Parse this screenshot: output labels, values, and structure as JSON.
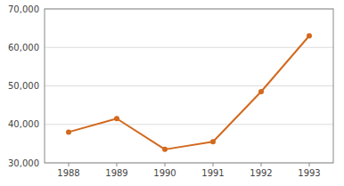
{
  "chart_data": {
    "type": "line",
    "x": [
      1988,
      1989,
      1990,
      1991,
      1992,
      1993
    ],
    "values": [
      38000,
      41500,
      33500,
      35500,
      48500,
      63000
    ],
    "color": "#D2691E",
    "marker": "circle",
    "xlim": [
      1987.5,
      1993.5
    ],
    "xticks": [
      1988,
      1989,
      1990,
      1991,
      1992,
      1993
    ],
    "ylim": [
      30000,
      70000
    ],
    "yticks": [
      {
        "value": 30000,
        "label": "30,000"
      },
      {
        "value": 40000,
        "label": "40,000"
      },
      {
        "value": 50000,
        "label": "50,000"
      },
      {
        "value": 60000,
        "label": "60,000"
      },
      {
        "value": 70000,
        "label": "70,000"
      }
    ],
    "grid": true
  }
}
